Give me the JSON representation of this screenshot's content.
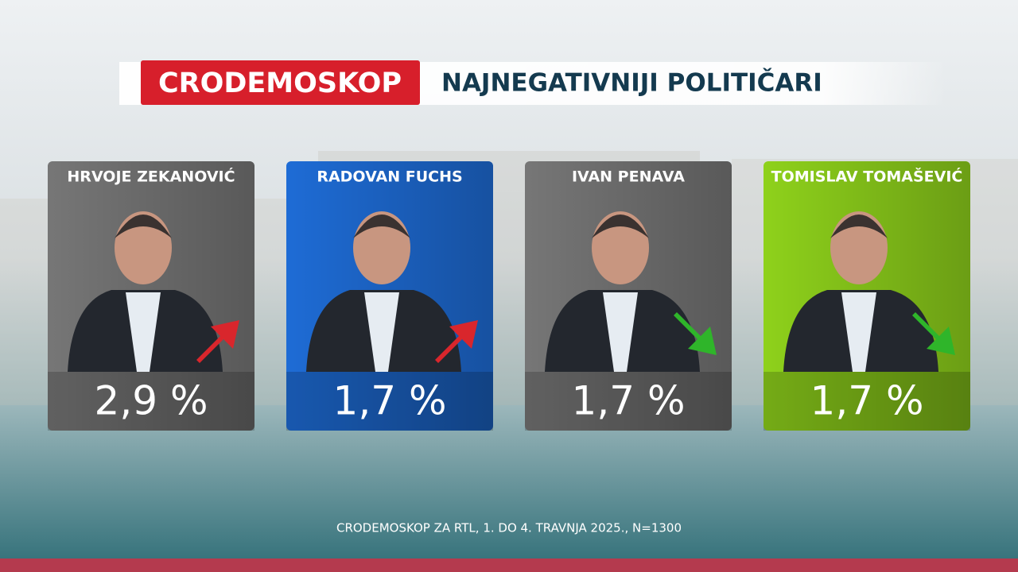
{
  "header": {
    "brand": "CRODEMOSKOP",
    "title": "NAJNEGATIVNIJI POLITIČARI"
  },
  "cards": [
    {
      "name": "HRVOJE ZEKANOVIĆ",
      "value": "2,9 %",
      "trend": "up",
      "color": "#7a7a7a"
    },
    {
      "name": "RADOVAN FUCHS",
      "value": "1,7 %",
      "trend": "up",
      "color": "#1f6fdc"
    },
    {
      "name": "IVAN PENAVA",
      "value": "1,7 %",
      "trend": "down",
      "color": "#7a7a7a"
    },
    {
      "name": "TOMISLAV TOMAŠEVIĆ",
      "value": "1,7 %",
      "trend": "down",
      "color": "#93d81c"
    }
  ],
  "footer": {
    "source": "CRODEMOSKOP ZA RTL, 1. DO 4. TRAVNJA 2025., N=1300"
  }
}
